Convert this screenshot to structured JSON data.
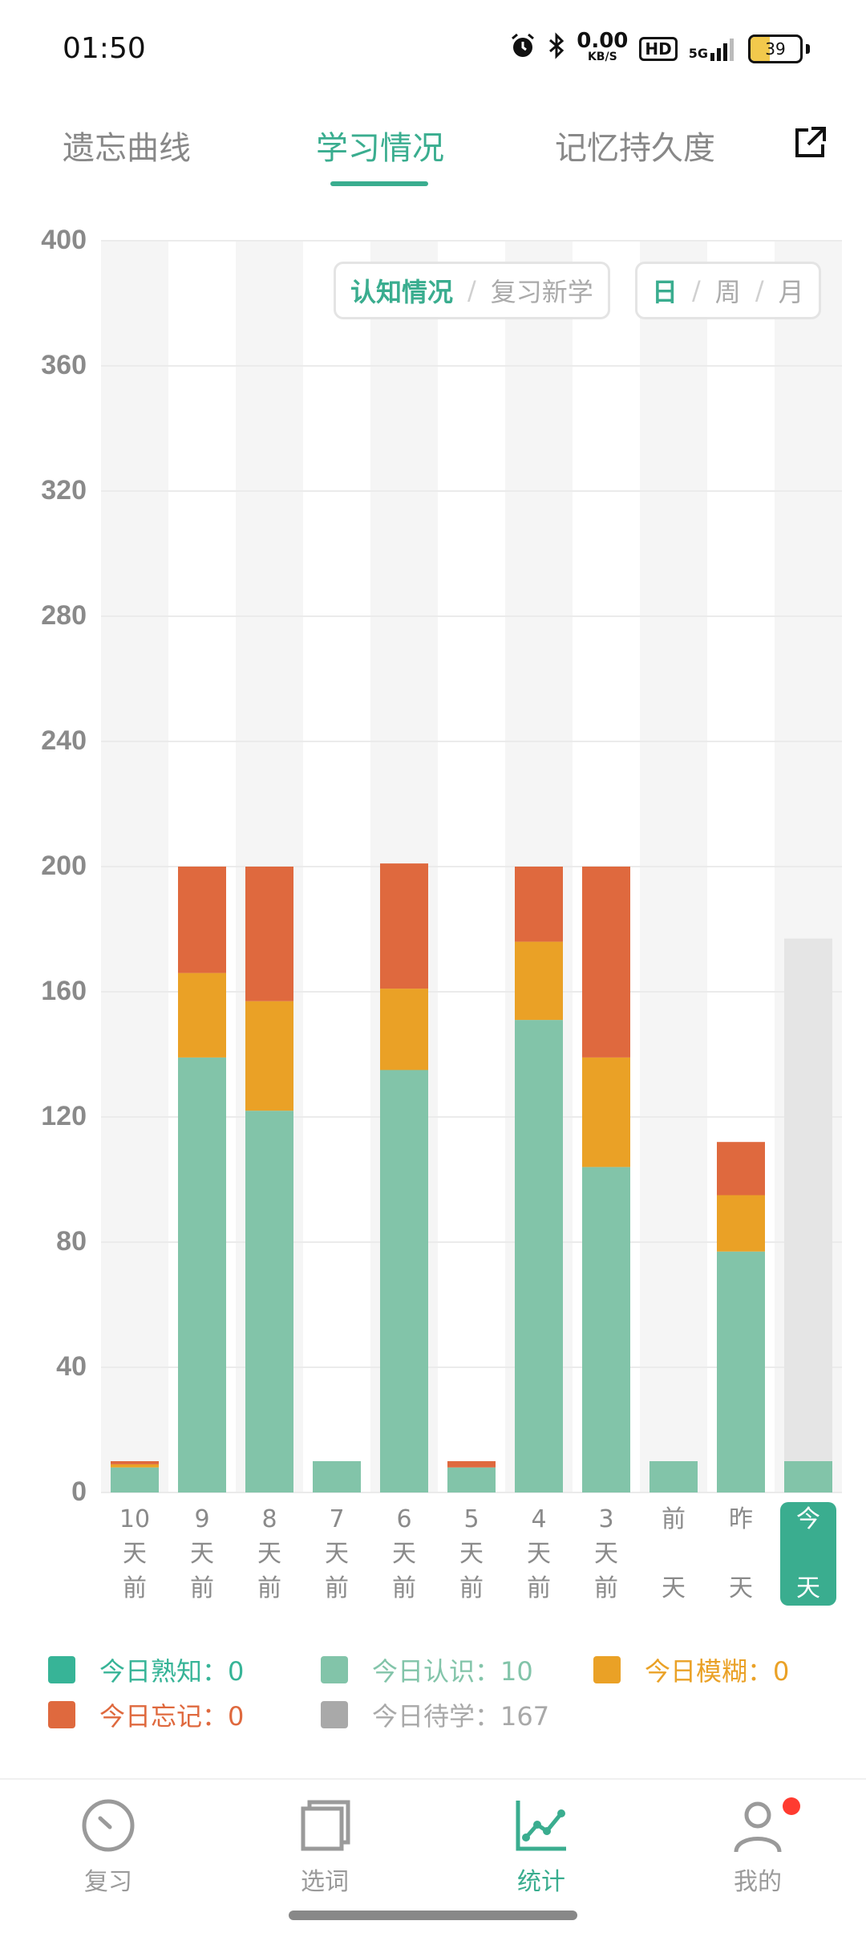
{
  "status": {
    "time": "01:50",
    "net_speed": "0.00",
    "net_unit": "KB/S",
    "hd": "HD",
    "signal": "5G",
    "battery": "39",
    "battery_level": 0.39
  },
  "tabs": [
    {
      "label": "遗忘曲线",
      "active": false
    },
    {
      "label": "学习情况",
      "active": true
    },
    {
      "label": "记忆持久度",
      "active": false
    }
  ],
  "toggles": {
    "mode": [
      "认知情况",
      "复习新学"
    ],
    "period": [
      "日",
      "周",
      "月"
    ]
  },
  "chart_data": {
    "type": "bar",
    "stacked": true,
    "categories": [
      "10天前",
      "9天前",
      "8天前",
      "7天前",
      "6天前",
      "5天前",
      "4天前",
      "3天前",
      "前天",
      "昨天",
      "今天"
    ],
    "category_lines": [
      [
        "10",
        "天",
        "前"
      ],
      [
        "9",
        "天",
        "前"
      ],
      [
        "8",
        "天",
        "前"
      ],
      [
        "7",
        "天",
        "前"
      ],
      [
        "6",
        "天",
        "前"
      ],
      [
        "5",
        "天",
        "前"
      ],
      [
        "4",
        "天",
        "前"
      ],
      [
        "3",
        "天",
        "前"
      ],
      [
        "前",
        "",
        "天"
      ],
      [
        "昨",
        "",
        "天"
      ],
      [
        "今",
        "",
        "天"
      ]
    ],
    "ylim": [
      0,
      400
    ],
    "yticks": [
      0,
      40,
      80,
      120,
      160,
      200,
      240,
      280,
      320,
      360,
      400
    ],
    "grid": true,
    "legend_position": "bottom",
    "highlighted_category": "今天",
    "series": [
      {
        "name": "今日熟知",
        "color": "#37b497",
        "values": [
          0,
          0,
          0,
          0,
          0,
          0,
          0,
          0,
          0,
          0,
          0
        ]
      },
      {
        "name": "今日认识",
        "color": "#82c4a9",
        "values": [
          8,
          139,
          122,
          10,
          135,
          8,
          151,
          104,
          10,
          77,
          10
        ]
      },
      {
        "name": "今日待学",
        "color": "#e5e5e5",
        "values": [
          0,
          0,
          0,
          0,
          0,
          0,
          0,
          0,
          0,
          0,
          167
        ]
      },
      {
        "name": "今日模糊",
        "color": "#eaa126",
        "values": [
          1,
          27,
          35,
          0,
          26,
          0,
          25,
          35,
          0,
          18,
          0
        ]
      },
      {
        "name": "今日忘记",
        "color": "#df693e",
        "values": [
          1,
          34,
          43,
          0,
          40,
          2,
          24,
          61,
          0,
          17,
          0
        ]
      }
    ]
  },
  "legend": [
    {
      "label": "今日熟知：0",
      "color": "#37b497"
    },
    {
      "label": "今日认识：10",
      "color": "#82c4a9"
    },
    {
      "label": "今日模糊：0",
      "color": "#eaa126"
    },
    {
      "label": "今日忘记：0",
      "color": "#df693e"
    },
    {
      "label": "今日待学：167",
      "color": "#a9a9a9"
    }
  ],
  "nav": [
    {
      "label": "复习",
      "active": false
    },
    {
      "label": "选词",
      "active": false
    },
    {
      "label": "统计",
      "active": true
    },
    {
      "label": "我的",
      "active": false
    }
  ]
}
